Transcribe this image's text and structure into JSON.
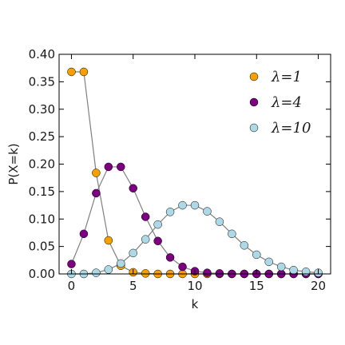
{
  "chart_data": {
    "type": "line",
    "title": "",
    "xlabel": "k",
    "ylabel": "P(X=k)",
    "xlim": [
      -1,
      21
    ],
    "ylim": [
      0,
      0.4
    ],
    "xticks": [
      0,
      5,
      10,
      15,
      20
    ],
    "xtick_labels": [
      "0",
      "5",
      "10",
      "15",
      "20"
    ],
    "yticks": [
      0,
      0.05,
      0.1,
      0.15,
      0.2,
      0.25,
      0.3,
      0.35,
      0.4
    ],
    "ytick_labels": [
      "0.00",
      "0.05",
      "0.10",
      "0.15",
      "0.20",
      "0.25",
      "0.30",
      "0.35",
      "0.40"
    ],
    "grid": false,
    "legend_position": "top-right",
    "x": [
      0,
      1,
      2,
      3,
      4,
      5,
      6,
      7,
      8,
      9,
      10,
      11,
      12,
      13,
      14,
      15,
      16,
      17,
      18,
      19,
      20
    ],
    "series": [
      {
        "name": "λ=1",
        "color": "#f5a000",
        "values": [
          0.368,
          0.368,
          0.184,
          0.061,
          0.015,
          0.003,
          0.001,
          0.0,
          0.0,
          0.0,
          0.0,
          0.0,
          0.0,
          0.0,
          0.0,
          0.0,
          0.0,
          0.0,
          0.0,
          0.0,
          0.0
        ]
      },
      {
        "name": "λ=4",
        "color": "#7a0080",
        "values": [
          0.018,
          0.073,
          0.147,
          0.195,
          0.195,
          0.156,
          0.104,
          0.06,
          0.03,
          0.013,
          0.005,
          0.002,
          0.001,
          0.0,
          0.0,
          0.0,
          0.0,
          0.0,
          0.0,
          0.0,
          0.0
        ]
      },
      {
        "name": "λ=10",
        "color": "#add8e6",
        "values": [
          0.0,
          0.0,
          0.002,
          0.008,
          0.019,
          0.038,
          0.063,
          0.09,
          0.113,
          0.125,
          0.125,
          0.114,
          0.095,
          0.073,
          0.052,
          0.035,
          0.022,
          0.013,
          0.007,
          0.004,
          0.002
        ]
      }
    ]
  }
}
